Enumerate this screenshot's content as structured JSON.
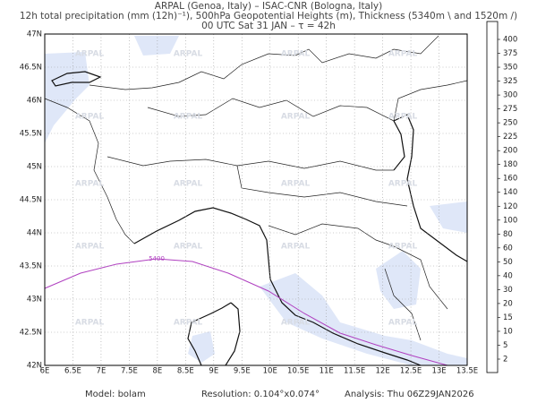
{
  "header": {
    "line1": "ARPAL (Genoa, Italy)  –  ISAC-CNR (Bologna, Italy)",
    "line2": "12h total precipitation (mm (12h)⁻¹), 500hPa Geopotential Heights (m), Thickness (5340m \\ and 1520m /)",
    "line3": "00 UTC Sat 31 JAN  –  τ = 42h"
  },
  "map": {
    "x_labels": [
      "6E",
      "6.5E",
      "7E",
      "7.5E",
      "8E",
      "8.5E",
      "9E",
      "9.5E",
      "10E",
      "10.5E",
      "11E",
      "11.5E",
      "12E",
      "12.5E",
      "13E",
      "13.5E"
    ],
    "y_labels": [
      "47N",
      "46.5N",
      "46N",
      "45.5N",
      "45N",
      "44.5N",
      "44N",
      "43.5N",
      "43N",
      "42.5N",
      "42N"
    ],
    "contour_label": "5400",
    "watermark": "ARPAL"
  },
  "colorbar": {
    "levels": [
      "2",
      "5",
      "10",
      "15",
      "20",
      "30",
      "40",
      "50",
      "60",
      "80",
      "100",
      "120",
      "140",
      "160",
      "180",
      "200",
      "225",
      "250",
      "275",
      "300",
      "325",
      "350",
      "375",
      "400"
    ],
    "colors": [
      "#dbe4f7",
      "#c3d3f2",
      "#a9c0ec",
      "#8eabe4",
      "#7a98dc",
      "#6a86d2",
      "#8fc8e8",
      "#7dd0b0",
      "#5cbf5c",
      "#9ad040",
      "#d8e040",
      "#f0d030",
      "#f0a020",
      "#ec7020",
      "#e04020",
      "#c82020",
      "#a01830",
      "#902080",
      "#a040b0",
      "#c8c8d0",
      "#d8d8e0",
      "#e4e4ea",
      "#eeeef2",
      "#f6f6f8"
    ]
  },
  "footer": {
    "model": "Model: bolam",
    "resolution": "Resolution: 0.104°x0.074°",
    "analysis": "Analysis: Thu 06Z29JAN2026"
  }
}
